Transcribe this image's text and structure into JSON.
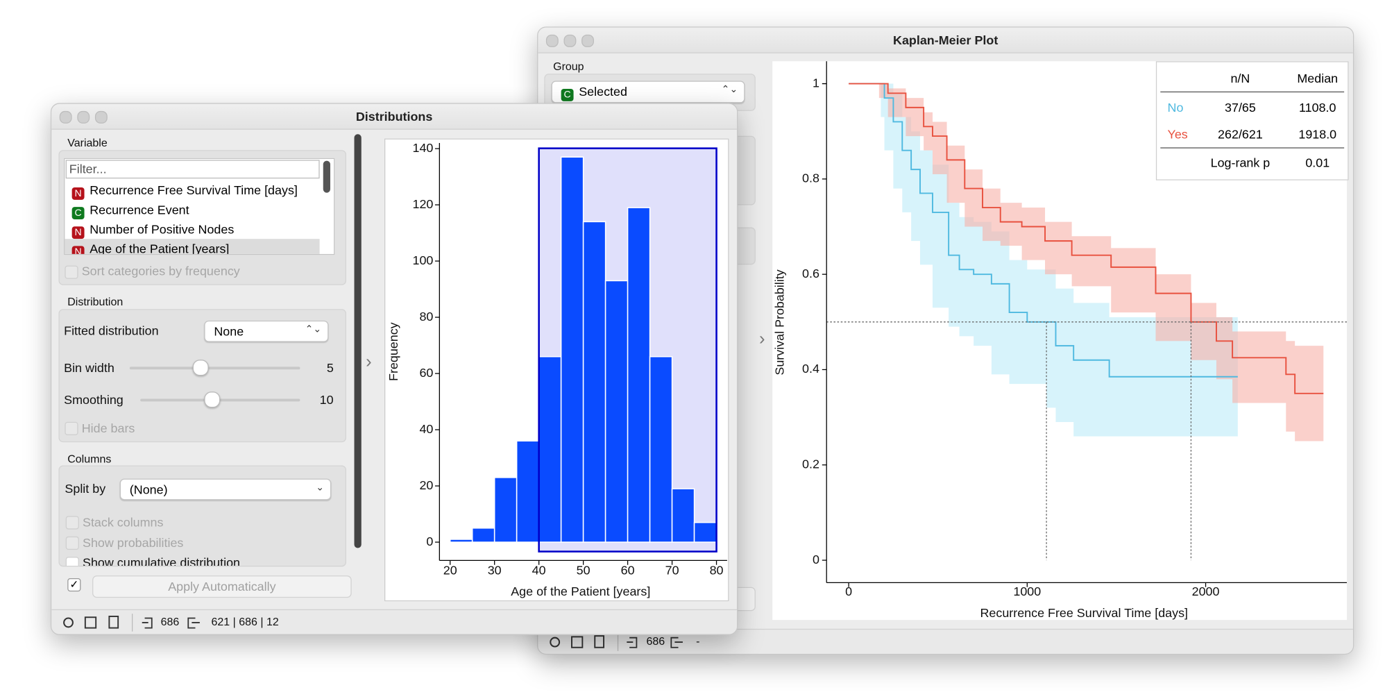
{
  "km_window": {
    "title": "Kaplan-Meier Plot",
    "group_label": "Group",
    "group_type": "C",
    "group_value": "Selected",
    "status_in": 686,
    "status_out": "-",
    "chart_data": {
      "type": "step",
      "x_label": "Recurrence Free Survival Time [days]",
      "y_label": "Survival Probability",
      "xlim": [
        -124,
        2791
      ],
      "ylim": [
        -0.047,
        1.047
      ],
      "xticks": [
        0,
        1000,
        2000
      ],
      "yticks": [
        0,
        0.2,
        0.4,
        0.6,
        0.8,
        1
      ],
      "median_survival": 0.5,
      "table_headers": [
        "n/N",
        "Median"
      ],
      "logrank_label": "Log-rank p",
      "logrank_p": 0.01,
      "series": [
        {
          "name": "No",
          "color": "#4fb9e0",
          "band_color": "#bdebf8",
          "n_of_N": "37/65",
          "median": 1108,
          "median_label": "1108.0",
          "x": [
            0,
            180,
            200,
            250,
            300,
            350,
            400,
            470,
            560,
            620,
            700,
            800,
            900,
            1000,
            1108,
            1160,
            1260,
            1460,
            2180
          ],
          "values": [
            1,
            1,
            0.97,
            0.92,
            0.86,
            0.82,
            0.77,
            0.73,
            0.64,
            0.61,
            0.6,
            0.58,
            0.52,
            0.5,
            0.5,
            0.45,
            0.42,
            0.385,
            0.385
          ],
          "lower": [
            1,
            1,
            0.93,
            0.86,
            0.78,
            0.73,
            0.67,
            0.62,
            0.53,
            0.49,
            0.47,
            0.45,
            0.39,
            0.37,
            0.37,
            0.32,
            0.29,
            0.26,
            0.26
          ],
          "upper": [
            1,
            1,
            1,
            0.98,
            0.93,
            0.9,
            0.86,
            0.83,
            0.75,
            0.72,
            0.71,
            0.69,
            0.63,
            0.61,
            0.61,
            0.57,
            0.54,
            0.51,
            0.51
          ]
        },
        {
          "name": "Yes",
          "color": "#e8513f",
          "band_color": "#f7b1a8",
          "n_of_N": "262/621",
          "median": 1918,
          "median_label": "1918.0",
          "x": [
            0,
            170,
            220,
            320,
            420,
            470,
            550,
            650,
            750,
            850,
            970,
            1100,
            1250,
            1470,
            1720,
            1918,
            2060,
            2150,
            2450,
            2500,
            2660
          ],
          "values": [
            1,
            1,
            0.98,
            0.95,
            0.91,
            0.89,
            0.84,
            0.78,
            0.74,
            0.71,
            0.7,
            0.67,
            0.64,
            0.615,
            0.56,
            0.5,
            0.46,
            0.425,
            0.39,
            0.35,
            0.35
          ],
          "lower": [
            1,
            1,
            0.97,
            0.93,
            0.89,
            0.86,
            0.81,
            0.75,
            0.7,
            0.67,
            0.66,
            0.63,
            0.6,
            0.575,
            0.52,
            0.46,
            0.42,
            0.38,
            0.33,
            0.27,
            0.25
          ],
          "upper": [
            1,
            1,
            0.99,
            0.97,
            0.94,
            0.92,
            0.87,
            0.82,
            0.78,
            0.75,
            0.74,
            0.71,
            0.68,
            0.655,
            0.6,
            0.54,
            0.51,
            0.48,
            0.46,
            0.45,
            0.45
          ]
        }
      ]
    }
  },
  "dist_window": {
    "title": "Distributions",
    "variable_label": "Variable",
    "filter_placeholder": "Filter...",
    "variables": [
      {
        "type": "N",
        "name": "Recurrence Free Survival Time [days]"
      },
      {
        "type": "C",
        "name": "Recurrence Event"
      },
      {
        "type": "N",
        "name": "Number of Positive Nodes"
      },
      {
        "type": "N",
        "name": "Age of the Patient [years]"
      }
    ],
    "sort_label": "Sort categories by frequency",
    "distribution_label": "Distribution",
    "fitted_label": "Fitted distribution",
    "fitted_value": "None",
    "bin_width_label": "Bin width",
    "bin_width": 5,
    "smoothing_label": "Smoothing",
    "smoothing": 10,
    "hide_bars_label": "Hide bars",
    "columns_label": "Columns",
    "split_label": "Split by",
    "split_value": "(None)",
    "stack_label": "Stack columns",
    "prob_label": "Show probabilities",
    "cum_label": "Show cumulative distribution",
    "apply_label": "Apply Automatically",
    "status_in": 686,
    "status_out": "621 | 686 | 12",
    "chart_data": {
      "type": "histogram",
      "x_label": "Age of the Patient [years]",
      "y_label": "Frequency",
      "color": "#0a4bff",
      "bins": [
        20,
        25,
        30,
        35,
        40,
        45,
        50,
        55,
        60,
        65,
        70,
        75,
        80
      ],
      "values": [
        1,
        5,
        23,
        36,
        66,
        137,
        114,
        93,
        119,
        66,
        19,
        7
      ],
      "selection": [
        40,
        80
      ],
      "xlim": [
        17.6,
        82.4
      ],
      "ylim": [
        -6.5,
        142
      ],
      "xticks": [
        20,
        30,
        40,
        50,
        60,
        70,
        80
      ],
      "yticks": [
        0,
        20,
        40,
        60,
        80,
        100,
        120,
        140
      ]
    }
  }
}
